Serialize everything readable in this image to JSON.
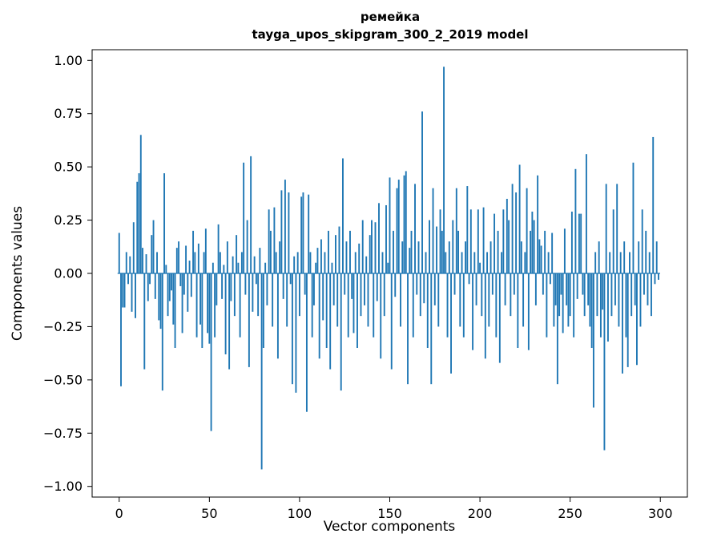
{
  "title": {
    "line1": "ремейка",
    "line2": "tayga_upos_skipgram_300_2_2019 model"
  },
  "chart_data": {
    "type": "bar",
    "title": "ремейка\ntayga_upos_skipgram_300_2_2019 model",
    "xlabel": "Vector components",
    "ylabel": "Components values",
    "xlim": [
      -15,
      315
    ],
    "ylim": [
      -1.05,
      1.05
    ],
    "x_ticks": [
      0,
      50,
      100,
      150,
      200,
      250,
      300
    ],
    "y_ticks": [
      -1.0,
      -0.75,
      -0.5,
      -0.25,
      0.0,
      0.25,
      0.5,
      0.75,
      1.0
    ],
    "grid": false,
    "legend": false,
    "bar_color": "#1f77b4",
    "values": [
      0.19,
      -0.53,
      -0.16,
      -0.16,
      0.1,
      -0.05,
      0.08,
      -0.18,
      0.24,
      -0.21,
      0.43,
      0.47,
      0.65,
      0.12,
      -0.45,
      0.09,
      -0.13,
      -0.05,
      0.18,
      0.25,
      -0.12,
      0.1,
      -0.22,
      -0.26,
      -0.55,
      0.47,
      0.04,
      -0.2,
      -0.13,
      -0.08,
      -0.24,
      -0.35,
      0.12,
      0.15,
      -0.06,
      -0.28,
      -0.1,
      0.13,
      -0.18,
      0.06,
      -0.11,
      0.2,
      0.1,
      -0.3,
      0.14,
      -0.24,
      -0.35,
      0.1,
      0.21,
      -0.28,
      -0.33,
      -0.74,
      0.05,
      -0.3,
      -0.15,
      0.23,
      0.1,
      -0.12,
      0.04,
      -0.38,
      0.15,
      -0.45,
      -0.13,
      0.08,
      -0.2,
      0.18,
      0.05,
      -0.3,
      0.1,
      0.52,
      -0.1,
      0.25,
      -0.44,
      0.55,
      -0.18,
      0.08,
      -0.05,
      -0.2,
      0.12,
      -0.92,
      -0.35,
      0.05,
      -0.15,
      0.3,
      0.2,
      -0.25,
      0.31,
      0.1,
      -0.4,
      0.15,
      0.39,
      -0.12,
      0.44,
      -0.25,
      0.38,
      -0.05,
      -0.52,
      0.08,
      -0.56,
      0.1,
      -0.2,
      0.36,
      0.38,
      -0.1,
      -0.65,
      0.37,
      0.1,
      -0.3,
      -0.15,
      0.05,
      0.12,
      -0.4,
      0.16,
      -0.22,
      0.1,
      -0.35,
      0.2,
      -0.45,
      0.05,
      -0.15,
      0.18,
      -0.25,
      0.22,
      -0.55,
      0.54,
      -0.1,
      0.15,
      -0.3,
      0.2,
      -0.12,
      -0.28,
      0.1,
      -0.35,
      0.14,
      -0.2,
      0.25,
      -0.15,
      0.08,
      -0.25,
      0.18,
      0.25,
      -0.3,
      0.24,
      -0.13,
      0.33,
      -0.4,
      0.1,
      -0.2,
      0.32,
      0.05,
      0.45,
      -0.45,
      0.2,
      -0.11,
      0.4,
      0.44,
      -0.25,
      0.15,
      0.46,
      0.48,
      -0.52,
      0.12,
      0.2,
      -0.3,
      0.42,
      -0.1,
      0.15,
      -0.2,
      0.76,
      -0.14,
      0.1,
      -0.35,
      0.25,
      -0.52,
      0.4,
      -0.15,
      0.22,
      -0.25,
      0.3,
      0.2,
      0.97,
      0.1,
      -0.3,
      0.15,
      -0.47,
      0.25,
      -0.1,
      0.4,
      0.2,
      -0.25,
      0.1,
      -0.3,
      0.15,
      0.41,
      -0.05,
      0.3,
      -0.36,
      0.1,
      -0.15,
      0.3,
      0.05,
      -0.2,
      0.31,
      -0.4,
      0.1,
      -0.25,
      0.15,
      -0.1,
      0.28,
      -0.3,
      0.2,
      -0.42,
      0.1,
      0.3,
      -0.15,
      0.35,
      0.25,
      -0.2,
      0.42,
      -0.1,
      0.38,
      -0.35,
      0.51,
      0.15,
      -0.25,
      0.1,
      0.4,
      -0.36,
      0.2,
      0.29,
      0.25,
      -0.15,
      0.46,
      0.16,
      0.13,
      -0.1,
      0.2,
      -0.3,
      0.1,
      -0.05,
      0.19,
      -0.25,
      -0.15,
      -0.52,
      -0.2,
      -0.1,
      -0.28,
      0.21,
      -0.15,
      -0.25,
      -0.2,
      0.29,
      -0.3,
      0.49,
      -0.12,
      0.28,
      0.28,
      -0.1,
      -0.2,
      0.56,
      -0.15,
      -0.25,
      -0.35,
      -0.63,
      0.1,
      -0.2,
      0.15,
      -0.3,
      -0.17,
      -0.83,
      0.42,
      -0.32,
      0.1,
      -0.2,
      0.3,
      -0.15,
      0.42,
      -0.25,
      0.1,
      -0.47,
      0.15,
      -0.3,
      -0.44,
      0.1,
      -0.2,
      0.52,
      -0.15,
      -0.43,
      0.15,
      -0.25,
      0.3,
      -0.1,
      0.2,
      -0.15,
      0.1,
      -0.2,
      0.64,
      -0.05,
      0.15,
      -0.03
    ]
  }
}
